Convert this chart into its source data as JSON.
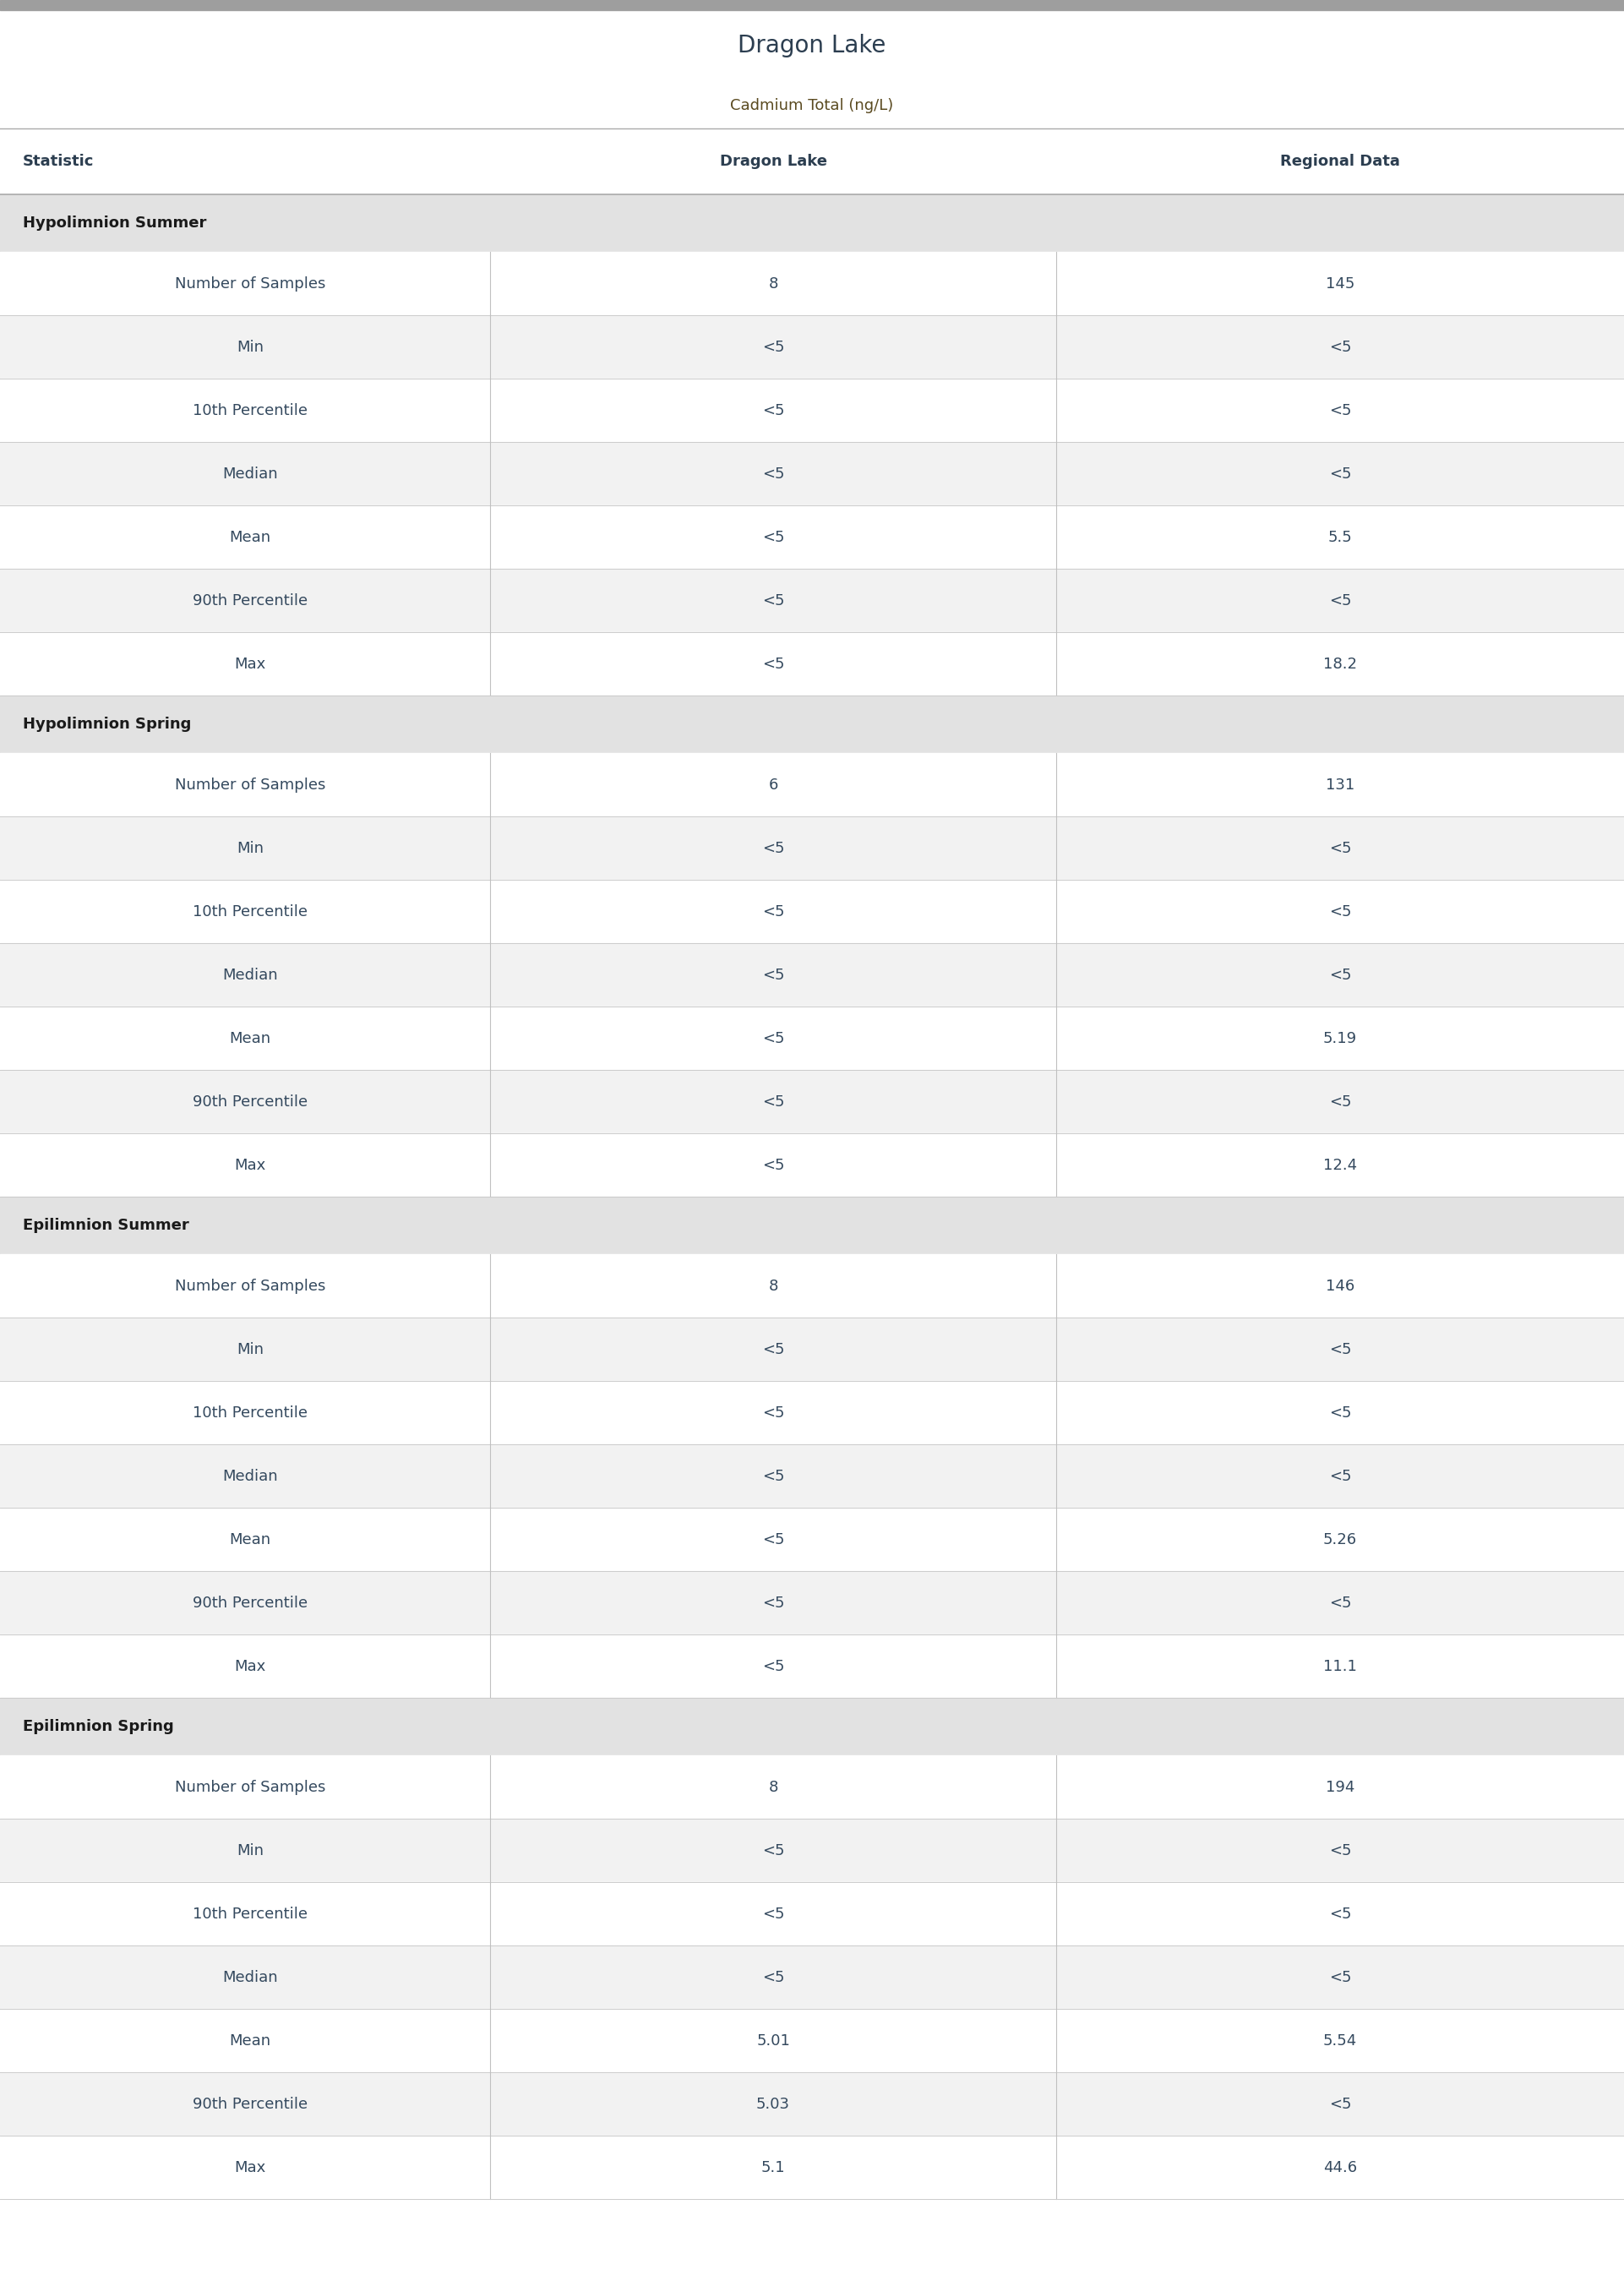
{
  "title": "Dragon Lake",
  "subtitle": "Cadmium Total (ng/L)",
  "title_color": "#2c3e50",
  "subtitle_color": "#5a4a20",
  "col_headers": [
    "Statistic",
    "Dragon Lake",
    "Regional Data"
  ],
  "col_header_color": "#2c3e50",
  "sections": [
    {
      "name": "Hypolimnion Summer",
      "rows": [
        [
          "Number of Samples",
          "8",
          "145"
        ],
        [
          "Min",
          "<5",
          "<5"
        ],
        [
          "10th Percentile",
          "<5",
          "<5"
        ],
        [
          "Median",
          "<5",
          "<5"
        ],
        [
          "Mean",
          "<5",
          "5.5"
        ],
        [
          "90th Percentile",
          "<5",
          "<5"
        ],
        [
          "Max",
          "<5",
          "18.2"
        ]
      ]
    },
    {
      "name": "Hypolimnion Spring",
      "rows": [
        [
          "Number of Samples",
          "6",
          "131"
        ],
        [
          "Min",
          "<5",
          "<5"
        ],
        [
          "10th Percentile",
          "<5",
          "<5"
        ],
        [
          "Median",
          "<5",
          "<5"
        ],
        [
          "Mean",
          "<5",
          "5.19"
        ],
        [
          "90th Percentile",
          "<5",
          "<5"
        ],
        [
          "Max",
          "<5",
          "12.4"
        ]
      ]
    },
    {
      "name": "Epilimnion Summer",
      "rows": [
        [
          "Number of Samples",
          "8",
          "146"
        ],
        [
          "Min",
          "<5",
          "<5"
        ],
        [
          "10th Percentile",
          "<5",
          "<5"
        ],
        [
          "Median",
          "<5",
          "<5"
        ],
        [
          "Mean",
          "<5",
          "5.26"
        ],
        [
          "90th Percentile",
          "<5",
          "<5"
        ],
        [
          "Max",
          "<5",
          "11.1"
        ]
      ]
    },
    {
      "name": "Epilimnion Spring",
      "rows": [
        [
          "Number of Samples",
          "8",
          "194"
        ],
        [
          "Min",
          "<5",
          "<5"
        ],
        [
          "10th Percentile",
          "<5",
          "<5"
        ],
        [
          "Median",
          "<5",
          "<5"
        ],
        [
          "Mean",
          "5.01",
          "5.54"
        ],
        [
          "90th Percentile",
          "5.03",
          "<5"
        ],
        [
          "Max",
          "5.1",
          "44.6"
        ]
      ]
    }
  ],
  "section_bg_color": "#e2e2e2",
  "section_text_color": "#1a1a1a",
  "row_bg_white": "#ffffff",
  "row_bg_light": "#f2f2f2",
  "data_text_color": "#34495e",
  "statistic_text_color": "#34495e",
  "header_line_color": "#aaaaaa",
  "divider_color": "#cccccc",
  "top_bar_color": "#9e9e9e",
  "col_divider_color": "#c0c0c0",
  "background_color": "#ffffff"
}
